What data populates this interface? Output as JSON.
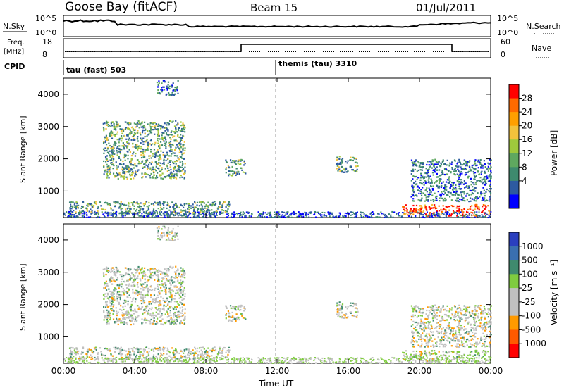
{
  "header": {
    "station": "Goose Bay (fitACF)",
    "beam": "Beam 15",
    "date": "01/Jul/2011"
  },
  "top_panels": {
    "nsky": {
      "left_label": "N.Sky",
      "ticks": [
        "10^5",
        "10^0"
      ],
      "right_ticks": [
        "10^5",
        "10^0"
      ],
      "right_label": "N.Search"
    },
    "freq": {
      "left_label_1": "Freq.",
      "left_label_2": "[MHz]",
      "ticks": [
        "18",
        "8"
      ],
      "right_ticks": [
        "60",
        "0"
      ],
      "right_label": "Nave"
    },
    "cpid": {
      "label": "CPID",
      "mode1": "tau (fast) 503",
      "mode2": "themis (tau) 3310"
    }
  },
  "power_colorbar": {
    "label": "Power [dB]",
    "ticks": [
      "28",
      "24",
      "20",
      "16",
      "12",
      "8",
      "4"
    ],
    "colors": [
      "#ff0000",
      "#ff6a00",
      "#ff9f00",
      "#f2c23c",
      "#9fc93c",
      "#5fa85f",
      "#3e8a6e",
      "#2d5aa0",
      "#0000ff"
    ]
  },
  "velocity_colorbar": {
    "label": "Velocity [m s⁻¹]",
    "ticks": [
      "1000",
      "500",
      "100",
      "25",
      "-25",
      "-100",
      "-500",
      "-1000"
    ],
    "colors": [
      "#2a3fbf",
      "#3a6fb0",
      "#3f8a6e",
      "#7fcc3f",
      "#c0c0c0",
      "#c0c0c0",
      "#ff9a00",
      "#ff5a00",
      "#ff0000"
    ]
  },
  "chart_data": [
    {
      "type": "heatmap",
      "title": "Power [dB]",
      "xlabel": "Time UT",
      "ylabel": "Slant Range [km]",
      "x_ticks": [
        "00:00",
        "04:00",
        "08:00",
        "12:00",
        "16:00",
        "20:00",
        "00:00"
      ],
      "y_ticks": [
        "1000",
        "2000",
        "3000",
        "4000"
      ],
      "xlim": [
        0,
        24
      ],
      "ylim": [
        180,
        4500
      ],
      "regions": [
        {
          "t0": 0.3,
          "t1": 9.3,
          "r0": 300,
          "r1": 700,
          "level": "mid"
        },
        {
          "t0": 2.2,
          "t1": 6.8,
          "r0": 1400,
          "r1": 3200,
          "level": "mid"
        },
        {
          "t0": 5.2,
          "t1": 6.4,
          "r0": 4000,
          "r1": 4450,
          "level": "low"
        },
        {
          "t0": 9.0,
          "t1": 10.2,
          "r0": 1500,
          "r1": 2000,
          "level": "mid"
        },
        {
          "t0": 15.3,
          "t1": 16.5,
          "r0": 1600,
          "r1": 2100,
          "level": "mid"
        },
        {
          "t0": 19.0,
          "t1": 24.0,
          "r0": 250,
          "r1": 600,
          "level": "high"
        },
        {
          "t0": 19.5,
          "t1": 24.0,
          "r0": 700,
          "r1": 2000,
          "level": "low"
        }
      ]
    },
    {
      "type": "heatmap",
      "title": "Velocity [m s⁻¹]",
      "xlabel": "Time UT",
      "ylabel": "Slant Range [km]",
      "x_ticks": [
        "00:00",
        "04:00",
        "08:00",
        "12:00",
        "16:00",
        "20:00",
        "00:00"
      ],
      "y_ticks": [
        "1000",
        "2000",
        "3000",
        "4000"
      ],
      "xlim": [
        0,
        24
      ],
      "ylim": [
        180,
        4500
      ]
    }
  ]
}
